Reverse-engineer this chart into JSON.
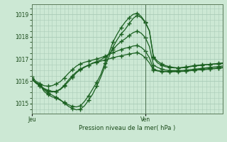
{
  "title": "Pression niveau de la mer( hPa )",
  "ylabel_ticks": [
    1015,
    1016,
    1017,
    1018,
    1019
  ],
  "ylim": [
    1014.55,
    1019.45
  ],
  "xlim": [
    0,
    47
  ],
  "xtick_positions": [
    0,
    28
  ],
  "xtick_labels": [
    "Jeu",
    "Ven"
  ],
  "vline_x": 28,
  "bg_color": "#cce8d4",
  "grid_color": "#aaccb8",
  "line_color": "#1a6020",
  "figsize": [
    3.2,
    2.0
  ],
  "dpi": 100,
  "series": [
    [
      1016.1,
      1015.95,
      1015.85,
      1015.55,
      1015.4,
      1015.3,
      1015.25,
      1015.15,
      1015.05,
      1014.95,
      1014.88,
      1014.85,
      1014.9,
      1015.1,
      1015.35,
      1015.65,
      1015.95,
      1016.3,
      1016.8,
      1017.25,
      1017.75,
      1018.1,
      1018.4,
      1018.65,
      1018.85,
      1019.0,
      1019.05,
      1018.9,
      1018.65,
      1018.25,
      1017.1,
      1016.9,
      1016.78,
      1016.7,
      1016.65,
      1016.62,
      1016.6,
      1016.6,
      1016.62,
      1016.65,
      1016.68,
      1016.7,
      1016.72,
      1016.74,
      1016.76,
      1016.78,
      1016.8,
      1016.82
    ],
    [
      1016.1,
      1015.93,
      1015.82,
      1015.68,
      1015.6,
      1015.55,
      1015.55,
      1015.62,
      1015.78,
      1015.98,
      1016.18,
      1016.38,
      1016.52,
      1016.62,
      1016.72,
      1016.82,
      1016.88,
      1016.95,
      1017.08,
      1017.22,
      1017.42,
      1017.62,
      1017.78,
      1017.9,
      1018.05,
      1018.18,
      1018.25,
      1018.15,
      1017.95,
      1017.55,
      1016.72,
      1016.62,
      1016.55,
      1016.5,
      1016.48,
      1016.48,
      1016.48,
      1016.48,
      1016.5,
      1016.52,
      1016.54,
      1016.56,
      1016.58,
      1016.6,
      1016.62,
      1016.64,
      1016.66,
      1016.68
    ],
    [
      1016.2,
      1016.0,
      1015.9,
      1015.8,
      1015.78,
      1015.8,
      1015.88,
      1015.98,
      1016.15,
      1016.35,
      1016.52,
      1016.68,
      1016.78,
      1016.85,
      1016.9,
      1016.95,
      1017.0,
      1017.05,
      1017.12,
      1017.2,
      1017.28,
      1017.35,
      1017.42,
      1017.48,
      1017.52,
      1017.58,
      1017.6,
      1017.52,
      1017.35,
      1017.05,
      1016.55,
      1016.48,
      1016.45,
      1016.44,
      1016.44,
      1016.44,
      1016.45,
      1016.45,
      1016.46,
      1016.48,
      1016.5,
      1016.52,
      1016.54,
      1016.55,
      1016.57,
      1016.58,
      1016.6,
      1016.62
    ],
    [
      1016.1,
      1015.92,
      1015.8,
      1015.62,
      1015.48,
      1015.38,
      1015.28,
      1015.18,
      1015.02,
      1014.88,
      1014.78,
      1014.72,
      1014.75,
      1014.9,
      1015.15,
      1015.42,
      1015.78,
      1016.18,
      1016.65,
      1017.08,
      1017.52,
      1017.85,
      1018.12,
      1018.32,
      1018.58,
      1018.82,
      1018.95,
      1018.85,
      1018.62,
      1018.25,
      1017.05,
      1016.82,
      1016.72,
      1016.65,
      1016.62,
      1016.6,
      1016.6,
      1016.62,
      1016.64,
      1016.67,
      1016.7,
      1016.72,
      1016.74,
      1016.75,
      1016.76,
      1016.77,
      1016.78,
      1016.79
    ],
    [
      1016.1,
      1015.92,
      1015.8,
      1015.65,
      1015.55,
      1015.52,
      1015.55,
      1015.65,
      1015.82,
      1016.05,
      1016.25,
      1016.42,
      1016.55,
      1016.65,
      1016.72,
      1016.8,
      1016.85,
      1016.9,
      1016.95,
      1017.0,
      1017.05,
      1017.1,
      1017.14,
      1017.18,
      1017.22,
      1017.25,
      1017.28,
      1017.2,
      1017.05,
      1016.82,
      1016.5,
      1016.46,
      1016.44,
      1016.43,
      1016.43,
      1016.43,
      1016.43,
      1016.44,
      1016.45,
      1016.47,
      1016.49,
      1016.51,
      1016.52,
      1016.53,
      1016.55,
      1016.56,
      1016.58,
      1016.6
    ]
  ],
  "marker": "+",
  "marker_interval": 2,
  "marker_size": 4.0,
  "linewidth": 0.9
}
